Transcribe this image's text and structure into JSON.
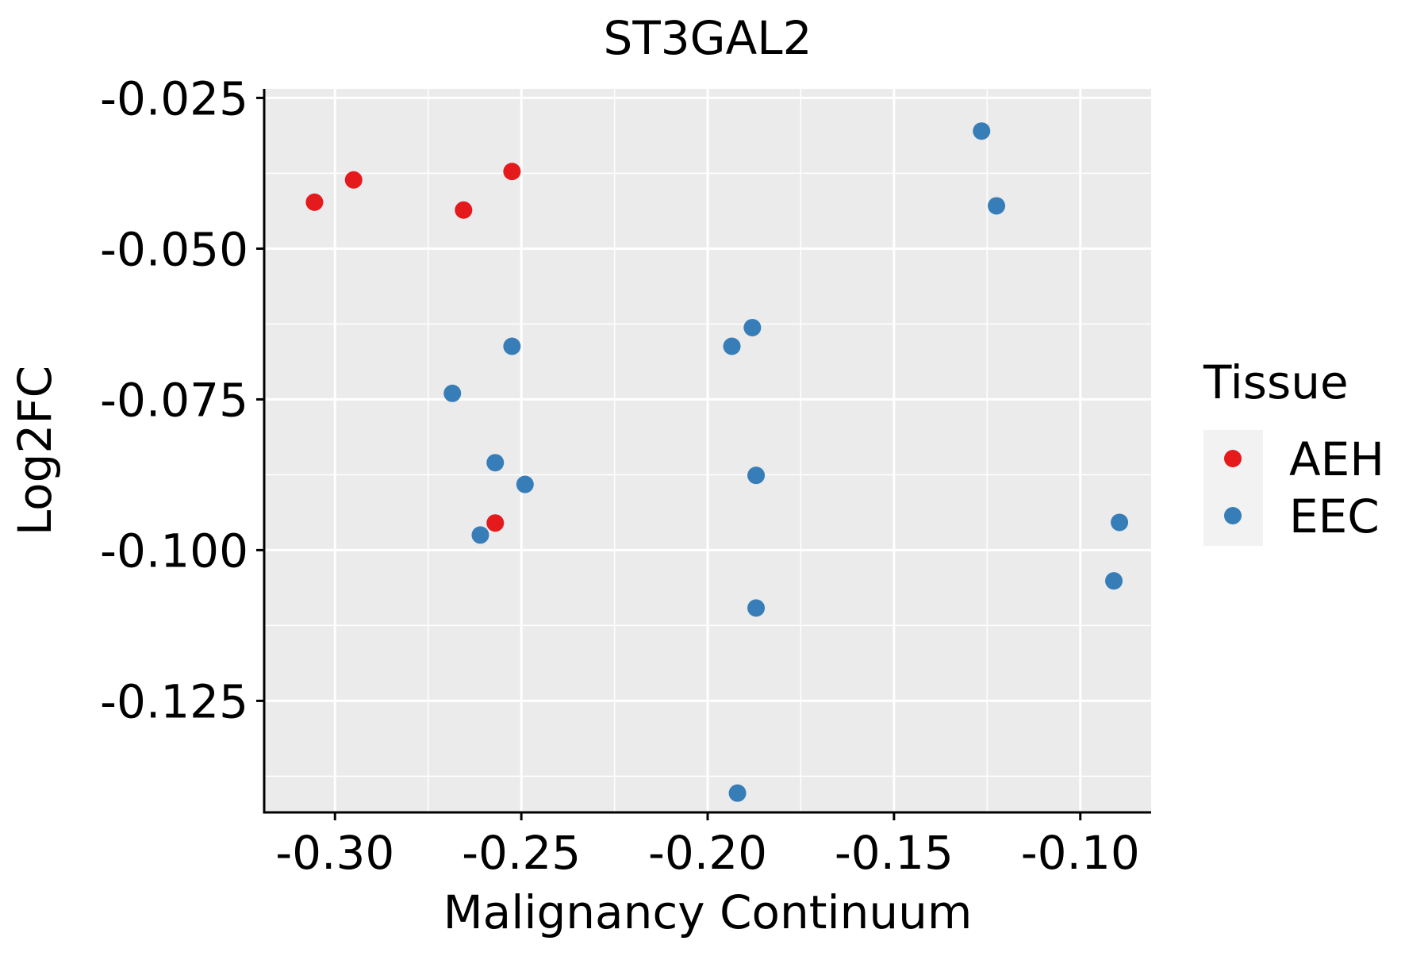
{
  "chart_data": {
    "type": "scatter",
    "title": "ST3GAL2",
    "xlabel": "Malignancy Continuum",
    "ylabel": "Log2FC",
    "xlim": [
      -0.319,
      -0.081
    ],
    "ylim": [
      -0.1435,
      -0.0235
    ],
    "x_ticks": [
      -0.3,
      -0.25,
      -0.2,
      -0.15,
      -0.1
    ],
    "x_tick_labels": [
      "-0.30",
      "-0.25",
      "-0.20",
      "-0.15",
      "-0.10"
    ],
    "y_ticks": [
      -0.025,
      -0.05,
      -0.075,
      -0.1,
      -0.125
    ],
    "y_tick_labels": [
      "-0.025",
      "-0.050",
      "-0.075",
      "-0.100",
      "-0.125"
    ],
    "grid": true,
    "legend": {
      "title": "Tissue",
      "position": "right",
      "entries": [
        "AEH",
        "EEC"
      ]
    },
    "series": [
      {
        "name": "AEH",
        "color": "#e41a1c",
        "points": [
          {
            "x": -0.3055,
            "y": -0.0423
          },
          {
            "x": -0.295,
            "y": -0.0386
          },
          {
            "x": -0.2655,
            "y": -0.0436
          },
          {
            "x": -0.2525,
            "y": -0.0372
          },
          {
            "x": -0.257,
            "y": -0.0955
          }
        ]
      },
      {
        "name": "EEC",
        "color": "#377eb8",
        "points": [
          {
            "x": -0.1265,
            "y": -0.0305
          },
          {
            "x": -0.1225,
            "y": -0.0429
          },
          {
            "x": -0.2525,
            "y": -0.0662
          },
          {
            "x": -0.1935,
            "y": -0.0662
          },
          {
            "x": -0.188,
            "y": -0.0631
          },
          {
            "x": -0.2685,
            "y": -0.074
          },
          {
            "x": -0.257,
            "y": -0.0855
          },
          {
            "x": -0.249,
            "y": -0.0891
          },
          {
            "x": -0.187,
            "y": -0.0876
          },
          {
            "x": -0.261,
            "y": -0.0975
          },
          {
            "x": -0.0895,
            "y": -0.0954
          },
          {
            "x": -0.091,
            "y": -0.1051
          },
          {
            "x": -0.187,
            "y": -0.1096
          },
          {
            "x": -0.192,
            "y": -0.1403
          }
        ]
      }
    ]
  }
}
